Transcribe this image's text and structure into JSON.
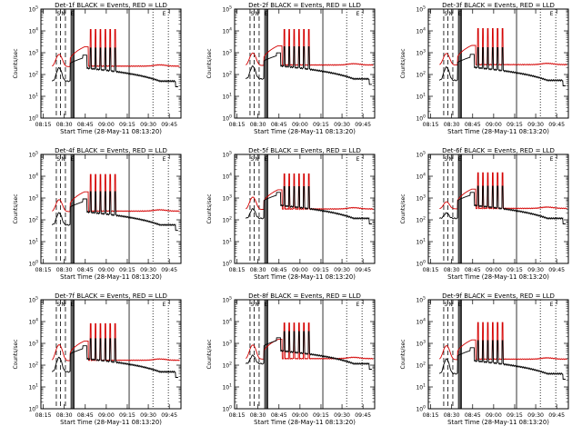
{
  "colors": {
    "events": "#000000",
    "lld": "#d40000",
    "axes": "#000000"
  },
  "common": {
    "title_suffix": "BLACK = Events, RED = LLD",
    "xlabel": "Start Time (28-May-11 08:13:20)",
    "ylabel": "Counts/sec",
    "x_tick_labels": [
      "08:15",
      "08:30",
      "08:45",
      "09:00",
      "09:15",
      "09:30",
      "09:45"
    ],
    "y_tick_labels": [
      {
        "base": "10",
        "exp": "0"
      },
      {
        "base": "10",
        "exp": "1"
      },
      {
        "base": "10",
        "exp": "2"
      },
      {
        "base": "10",
        "exp": "3"
      },
      {
        "base": "10",
        "exp": "4"
      },
      {
        "base": "10",
        "exp": "5"
      }
    ],
    "marker_labels": [
      "S",
      "N",
      "E"
    ]
  },
  "chart_data": [
    {
      "type": "line",
      "title": "Det-1f BLACK = Events, RED = LLD",
      "xlabel": "Start Time (28-May-11 08:13:20)",
      "ylabel": "Counts/sec",
      "yscale": "log",
      "ylim": [
        1,
        100000
      ],
      "xlim": [
        "08:13:20",
        "09:53"
      ],
      "series": [
        {
          "name": "Events",
          "color": "#000000"
        },
        {
          "name": "LLD",
          "color": "#d40000"
        }
      ],
      "params": {
        "ev": 55,
        "lld": 230,
        "bump": 600,
        "spike": 1.0
      }
    },
    {
      "type": "line",
      "title": "Det-2f BLACK = Events, RED = LLD",
      "xlabel": "Start Time (28-May-11 08:13:20)",
      "ylabel": "Counts/sec",
      "yscale": "log",
      "ylim": [
        1,
        100000
      ],
      "xlim": [
        "08:13:20",
        "09:53"
      ],
      "series": [
        {
          "name": "Events",
          "color": "#000000"
        },
        {
          "name": "LLD",
          "color": "#d40000"
        }
      ],
      "params": {
        "ev": 70,
        "lld": 260,
        "bump": 700,
        "spike": 0.9
      }
    },
    {
      "type": "line",
      "title": "Det-3f BLACK = Events, RED = LLD",
      "xlabel": "Start Time (28-May-11 08:13:20)",
      "ylabel": "Counts/sec",
      "yscale": "log",
      "ylim": [
        1,
        100000
      ],
      "xlim": [
        "08:13:20",
        "09:53"
      ],
      "series": [
        {
          "name": "Events",
          "color": "#000000"
        },
        {
          "name": "LLD",
          "color": "#d40000"
        }
      ],
      "params": {
        "ev": 60,
        "lld": 270,
        "bump": 650,
        "spike": 0.95
      }
    },
    {
      "type": "line",
      "title": "Det-4f BLACK = Events, RED = LLD",
      "xlabel": "Start Time (28-May-11 08:13:20)",
      "ylabel": "Counts/sec",
      "yscale": "log",
      "ylim": [
        1,
        100000
      ],
      "xlim": [
        "08:13:20",
        "09:53"
      ],
      "series": [
        {
          "name": "Events",
          "color": "#000000"
        },
        {
          "name": "LLD",
          "color": "#d40000"
        }
      ],
      "params": {
        "ev": 65,
        "lld": 240,
        "bump": 600,
        "spike": 1.0
      }
    },
    {
      "type": "line",
      "title": "Det-5f BLACK = Events, RED = LLD",
      "xlabel": "Start Time (28-May-11 08:13:20)",
      "ylabel": "Counts/sec",
      "yscale": "log",
      "ylim": [
        1,
        100000
      ],
      "xlim": [
        "08:13:20",
        "09:53"
      ],
      "series": [
        {
          "name": "Events",
          "color": "#000000"
        },
        {
          "name": "LLD",
          "color": "#d40000"
        }
      ],
      "params": {
        "ev": 130,
        "lld": 300,
        "bump": 800,
        "spike": 0.85
      }
    },
    {
      "type": "line",
      "title": "Det-6f BLACK = Events, RED = LLD",
      "xlabel": "Start Time (28-May-11 08:13:20)",
      "ylabel": "Counts/sec",
      "yscale": "log",
      "ylim": [
        1,
        100000
      ],
      "xlim": [
        "08:13:20",
        "09:53"
      ],
      "series": [
        {
          "name": "Events",
          "color": "#000000"
        },
        {
          "name": "LLD",
          "color": "#d40000"
        }
      ],
      "params": {
        "ev": 130,
        "lld": 320,
        "bump": 350,
        "spike": 0.9
      }
    },
    {
      "type": "line",
      "title": "Det-7f BLACK = Events, RED = LLD",
      "xlabel": "Start Time (28-May-11 08:13:20)",
      "ylabel": "Counts/sec",
      "yscale": "log",
      "ylim": [
        1,
        100000
      ],
      "xlim": [
        "08:13:20",
        "09:53"
      ],
      "series": [
        {
          "name": "Events",
          "color": "#000000"
        },
        {
          "name": "LLD",
          "color": "#d40000"
        }
      ],
      "params": {
        "ev": 55,
        "lld": 160,
        "bump": 700,
        "spike": 1.0
      }
    },
    {
      "type": "line",
      "title": "Det-8f BLACK = Events, RED = LLD",
      "xlabel": "Start Time (28-May-11 08:13:20)",
      "ylabel": "Counts/sec",
      "yscale": "log",
      "ylim": [
        1,
        100000
      ],
      "xlim": [
        "08:13:20",
        "09:53"
      ],
      "series": [
        {
          "name": "Events",
          "color": "#000000"
        },
        {
          "name": "LLD",
          "color": "#d40000"
        }
      ],
      "params": {
        "ev": 130,
        "lld": 190,
        "bump": 650,
        "spike": 0.9
      }
    },
    {
      "type": "line",
      "title": "Det-9f BLACK = Events, RED = LLD",
      "xlabel": "Start Time (28-May-11 08:13:20)",
      "ylabel": "Counts/sec",
      "yscale": "log",
      "ylim": [
        1,
        100000
      ],
      "xlim": [
        "08:13:20",
        "09:53"
      ],
      "series": [
        {
          "name": "Events",
          "color": "#000000"
        },
        {
          "name": "LLD",
          "color": "#d40000"
        }
      ],
      "params": {
        "ev": 45,
        "lld": 180,
        "bump": 600,
        "spike": 1.0
      }
    }
  ]
}
